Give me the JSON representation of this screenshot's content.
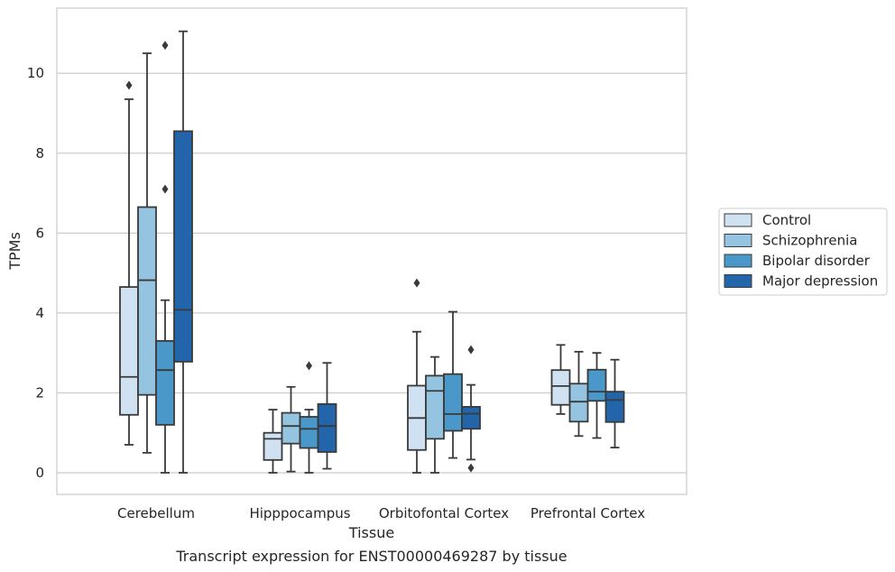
{
  "chart_data": {
    "type": "boxplot",
    "title": "Transcript expression for ENST00000469287 by tissue",
    "xlabel": "Tissue",
    "ylabel": "TPMs",
    "ylim": [
      -0.55,
      11.65
    ],
    "yticks": [
      0,
      2,
      4,
      6,
      8,
      10
    ],
    "grid": "horizontal",
    "legend_position": "right",
    "categories": [
      "Cerebellum",
      "Hipppocampus",
      "Orbitofontal Cortex",
      "Prefrontal Cortex"
    ],
    "series": [
      {
        "name": "Control",
        "color": "#d0e1f2",
        "boxes": [
          {
            "whisker_low": 0.7,
            "q1": 1.45,
            "median": 2.4,
            "q3": 4.65,
            "whisker_high": 9.35,
            "outliers": [
              9.7
            ]
          },
          {
            "whisker_low": 0.0,
            "q1": 0.32,
            "median": 0.85,
            "q3": 1.0,
            "whisker_high": 1.58,
            "outliers": []
          },
          {
            "whisker_low": 0.0,
            "q1": 0.57,
            "median": 1.37,
            "q3": 2.18,
            "whisker_high": 3.53,
            "outliers": [
              4.75
            ]
          },
          {
            "whisker_low": 1.47,
            "q1": 1.7,
            "median": 2.17,
            "q3": 2.57,
            "whisker_high": 3.2,
            "outliers": []
          }
        ]
      },
      {
        "name": "Schizophrenia",
        "color": "#94c4df",
        "boxes": [
          {
            "whisker_low": 0.5,
            "q1": 1.95,
            "median": 4.82,
            "q3": 6.65,
            "whisker_high": 10.5,
            "outliers": []
          },
          {
            "whisker_low": 0.03,
            "q1": 0.73,
            "median": 1.17,
            "q3": 1.5,
            "whisker_high": 2.15,
            "outliers": []
          },
          {
            "whisker_low": 0.0,
            "q1": 0.85,
            "median": 2.05,
            "q3": 2.43,
            "whisker_high": 2.9,
            "outliers": []
          },
          {
            "whisker_low": 0.92,
            "q1": 1.28,
            "median": 1.78,
            "q3": 2.23,
            "whisker_high": 3.03,
            "outliers": []
          }
        ]
      },
      {
        "name": "Bipolar disorder",
        "color": "#4a98c9",
        "boxes": [
          {
            "whisker_low": 0.0,
            "q1": 1.2,
            "median": 2.57,
            "q3": 3.3,
            "whisker_high": 4.32,
            "outliers": [
              7.1,
              10.7
            ]
          },
          {
            "whisker_low": 0.0,
            "q1": 0.62,
            "median": 1.1,
            "q3": 1.4,
            "whisker_high": 1.58,
            "outliers": [
              2.68
            ]
          },
          {
            "whisker_low": 0.37,
            "q1": 1.05,
            "median": 1.47,
            "q3": 2.47,
            "whisker_high": 4.03,
            "outliers": []
          },
          {
            "whisker_low": 0.87,
            "q1": 1.8,
            "median": 2.03,
            "q3": 2.58,
            "whisker_high": 3.0,
            "outliers": []
          }
        ]
      },
      {
        "name": "Major depression",
        "color": "#2365aa",
        "boxes": [
          {
            "whisker_low": 0.0,
            "q1": 2.78,
            "median": 4.08,
            "q3": 8.55,
            "whisker_high": 11.05,
            "outliers": []
          },
          {
            "whisker_low": 0.1,
            "q1": 0.52,
            "median": 1.17,
            "q3": 1.72,
            "whisker_high": 2.75,
            "outliers": []
          },
          {
            "whisker_low": 0.33,
            "q1": 1.1,
            "median": 1.48,
            "q3": 1.65,
            "whisker_high": 2.2,
            "outliers": [
              0.12,
              3.08
            ]
          },
          {
            "whisker_low": 0.63,
            "q1": 1.27,
            "median": 1.82,
            "q3": 2.03,
            "whisker_high": 2.83,
            "outliers": []
          }
        ]
      }
    ]
  }
}
